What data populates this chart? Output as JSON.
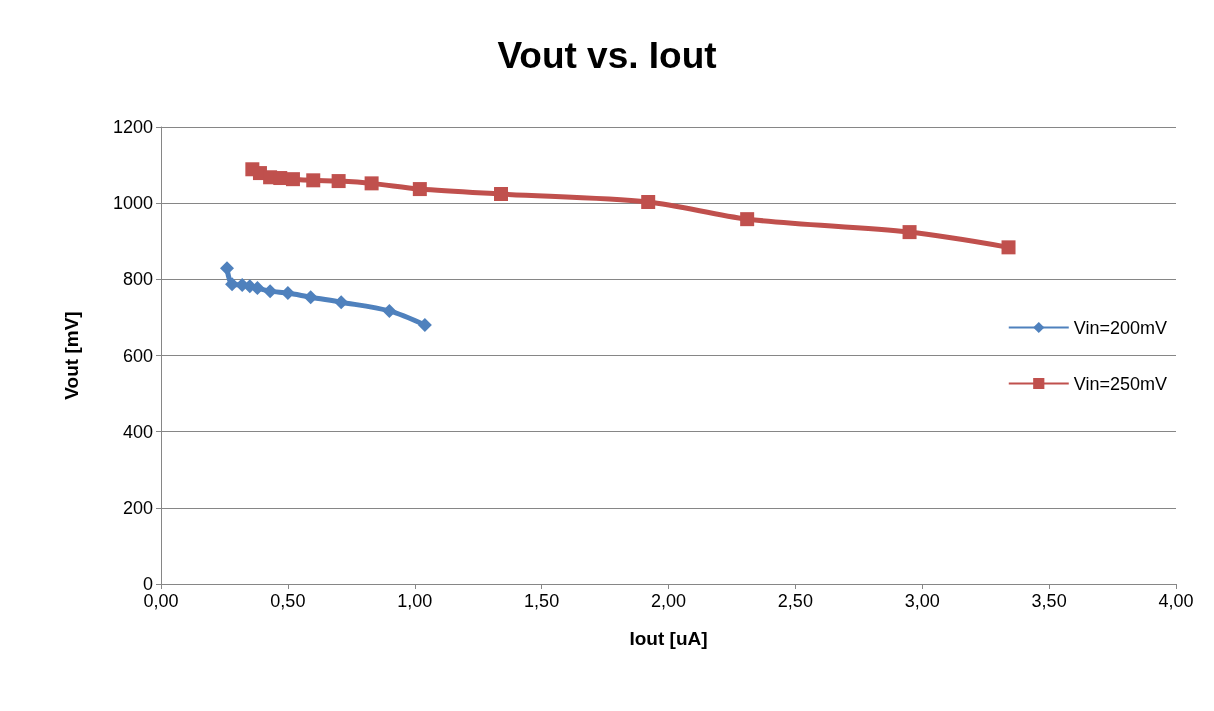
{
  "chart_data": {
    "type": "line",
    "title": "Vout vs. Iout",
    "xlabel": "Iout [uA]",
    "ylabel": "Vout [mV]",
    "xlim": [
      0,
      4
    ],
    "xticks": [
      {
        "value": 0,
        "label": "0,00"
      },
      {
        "value": 0.5,
        "label": "0,50"
      },
      {
        "value": 1,
        "label": "1,00"
      },
      {
        "value": 1.5,
        "label": "1,50"
      },
      {
        "value": 2,
        "label": "2,00"
      },
      {
        "value": 2.5,
        "label": "2,50"
      },
      {
        "value": 3,
        "label": "3,00"
      },
      {
        "value": 3.5,
        "label": "3,50"
      },
      {
        "value": 4,
        "label": "4,00"
      }
    ],
    "ylim": [
      0,
      1200
    ],
    "yticks": [
      0,
      200,
      400,
      600,
      800,
      1000,
      1200
    ],
    "grid": "y",
    "legend": "right",
    "series": [
      {
        "name": "Vin=200mV",
        "color": "#4f81bd",
        "marker": "diamond",
        "x": [
          0.26,
          0.28,
          0.32,
          0.35,
          0.38,
          0.43,
          0.5,
          0.59,
          0.71,
          0.9,
          1.04
        ],
        "values": [
          829,
          787,
          785,
          782,
          777,
          769,
          764,
          753,
          740,
          717,
          680
        ]
      },
      {
        "name": "Vin=250mV",
        "color": "#c0504d",
        "marker": "square",
        "x": [
          0.36,
          0.39,
          0.43,
          0.47,
          0.52,
          0.6,
          0.7,
          0.83,
          1.02,
          1.34,
          1.92,
          2.31,
          2.95,
          3.34
        ],
        "values": [
          1089,
          1079,
          1068,
          1066,
          1063,
          1060,
          1058,
          1052,
          1037,
          1024,
          1003,
          958,
          924,
          884
        ]
      }
    ]
  }
}
